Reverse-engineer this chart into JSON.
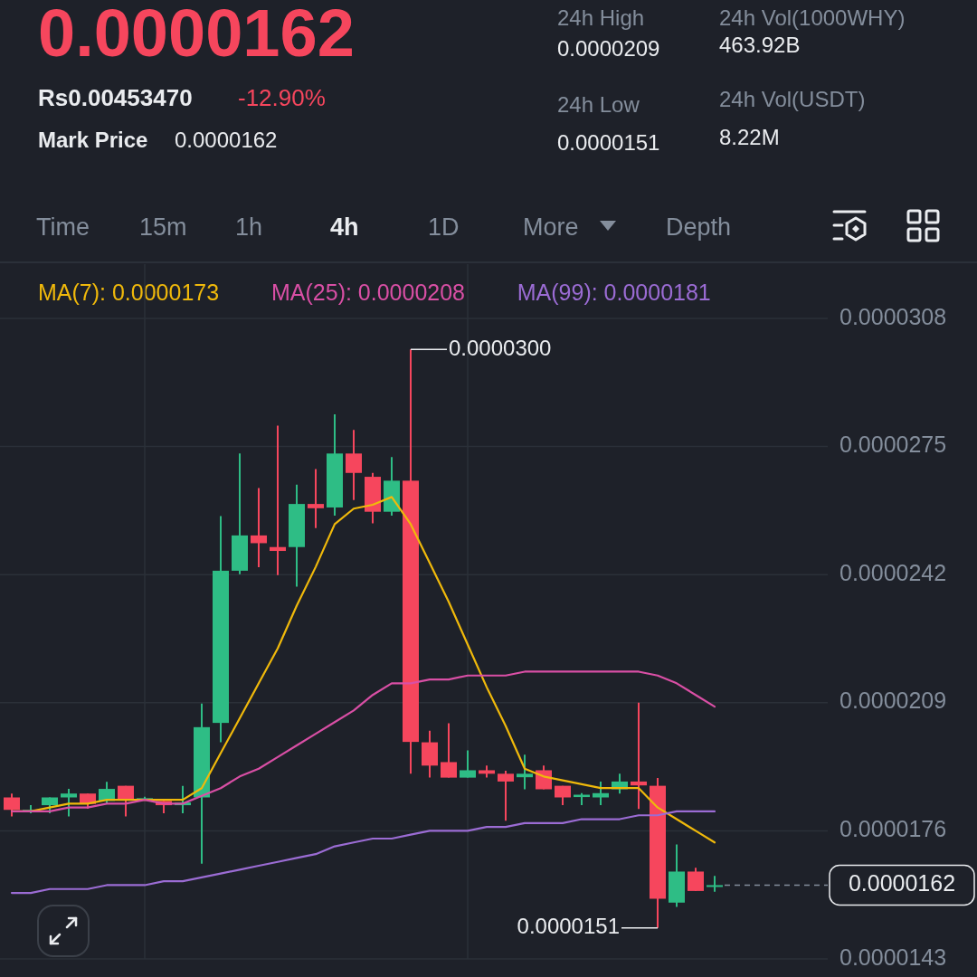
{
  "chart_data": {
    "type": "candlestick",
    "title": "0.0000162",
    "annotations": [
      "Rs0.00453470",
      "-12.90%",
      "Mark Price",
      "0.0000162",
      "24h High",
      "0.0000209",
      "24h Vol(1000WHY)",
      "463.92B",
      "24h Low",
      "0.0000151",
      "24h Vol(USDT)",
      "8.22M",
      "Time",
      "15m",
      "1h",
      "4h",
      "1D",
      "More",
      "Depth",
      "0.0000300",
      "0.0000151"
    ],
    "categories": [
      null,
      null,
      null,
      null,
      null,
      null,
      null,
      null,
      null,
      null,
      null,
      null,
      null,
      null,
      null,
      null,
      null,
      null,
      null,
      null,
      null,
      null,
      null,
      null,
      null,
      null,
      null,
      null,
      null,
      null,
      null,
      null,
      null,
      null,
      null,
      null,
      null,
      null
    ],
    "ohlc": [
      [
        1.846e-05,
        1.856e-05,
        1.797e-05,
        1.814e-05
      ],
      [
        1.808e-05,
        1.826e-05,
        1.805e-05,
        1.814e-05
      ],
      [
        1.826e-05,
        1.846e-05,
        1.805e-05,
        1.846e-05
      ],
      [
        1.846e-05,
        1.868e-05,
        1.797e-05,
        1.856e-05
      ],
      [
        1.856e-05,
        1.856e-05,
        1.817e-05,
        1.829e-05
      ],
      [
        1.837e-05,
        1.886e-05,
        1.83e-05,
        1.868e-05
      ],
      [
        1.876e-05,
        1.876e-05,
        1.797e-05,
        1.841e-05
      ],
      [
        1.842e-05,
        1.848e-05,
        1.838e-05,
        1.844e-05
      ],
      [
        1.837e-05,
        1.837e-05,
        1.805e-05,
        1.826e-05
      ],
      [
        1.826e-05,
        1.876e-05,
        1.805e-05,
        1.833e-05
      ],
      [
        1.846e-05,
        2.088e-05,
        1.675e-05,
        2.027e-05
      ],
      [
        2.038e-05,
        2.571e-05,
        1.988e-05,
        2.43e-05
      ],
      [
        2.43e-05,
        2.732e-05,
        2.421e-05,
        2.521e-05
      ],
      [
        2.521e-05,
        2.643e-05,
        2.439e-05,
        2.501e-05
      ],
      [
        2.491e-05,
        2.804e-05,
        2.419e-05,
        2.481e-05
      ],
      [
        2.491e-05,
        2.652e-05,
        2.389e-05,
        2.602e-05
      ],
      [
        2.602e-05,
        2.692e-05,
        2.54e-05,
        2.591e-05
      ],
      [
        2.593e-05,
        2.833e-05,
        2.572e-05,
        2.732e-05
      ],
      [
        2.732e-05,
        2.793e-05,
        2.612e-05,
        2.682e-05
      ],
      [
        2.672e-05,
        2.682e-05,
        2.552e-05,
        2.582e-05
      ],
      [
        2.582e-05,
        2.723e-05,
        2.572e-05,
        2.662e-05
      ],
      [
        2.662e-05,
        3e-05,
        1.907e-05,
        1.989e-05
      ],
      [
        1.988e-05,
        2.018e-05,
        1.897e-05,
        1.928e-05
      ],
      [
        1.937e-05,
        2.037e-05,
        1.897e-05,
        1.897e-05
      ],
      [
        1.897e-05,
        1.967e-05,
        1.897e-05,
        1.916e-05
      ],
      [
        1.916e-05,
        1.928e-05,
        1.897e-05,
        1.907e-05
      ],
      [
        1.907e-05,
        1.915e-05,
        1.786e-05,
        1.887e-05
      ],
      [
        1.898e-05,
        1.956e-05,
        1.867e-05,
        1.907e-05
      ],
      [
        1.916e-05,
        1.928e-05,
        1.867e-05,
        1.867e-05
      ],
      [
        1.876e-05,
        1.876e-05,
        1.826e-05,
        1.846e-05
      ],
      [
        1.847e-05,
        1.857e-05,
        1.826e-05,
        1.853e-05
      ],
      [
        1.846e-05,
        1.887e-05,
        1.826e-05,
        1.857e-05
      ],
      [
        1.867e-05,
        1.907e-05,
        1.856e-05,
        1.887e-05
      ],
      [
        1.887e-05,
        2.09e-05,
        1.816e-05,
        1.877e-05
      ],
      [
        1.876e-05,
        1.896e-05,
        1.51e-05,
        1.585e-05
      ],
      [
        1.575e-05,
        1.725e-05,
        1.564e-05,
        1.655e-05
      ],
      [
        1.655e-05,
        1.665e-05,
        1.605e-05,
        1.605e-05
      ],
      [
        1.617e-05,
        1.644e-05,
        1.603e-05,
        1.62e-05
      ]
    ],
    "colors": [
      "#f6465d",
      "#2ebd85",
      "#2ebd85",
      "#2ebd85",
      "#f6465d",
      "#2ebd85",
      "#f6465d",
      "#2ebd85",
      "#f6465d",
      "#2ebd85",
      "#2ebd85",
      "#2ebd85",
      "#2ebd85",
      "#f6465d",
      "#f6465d",
      "#2ebd85",
      "#f6465d",
      "#2ebd85",
      "#f6465d",
      "#f6465d",
      "#2ebd85",
      "#f6465d",
      "#f6465d",
      "#f6465d",
      "#2ebd85",
      "#f6465d",
      "#f6465d",
      "#2ebd85",
      "#f6465d",
      "#f6465d",
      "#2ebd85",
      "#2ebd85",
      "#2ebd85",
      "#f6465d",
      "#f6465d",
      "#2ebd85",
      "#f6465d",
      "#2ebd85"
    ],
    "series": [
      {
        "type": "line",
        "name": "MA(7): 0.0000173",
        "color": "#f0b90b",
        "values": [
          1.81e-05,
          1.81e-05,
          1.82e-05,
          1.83e-05,
          1.83e-05,
          1.84e-05,
          1.84e-05,
          1.84e-05,
          1.84e-05,
          1.84e-05,
          1.87e-05,
          1.96e-05,
          2.05e-05,
          2.14e-05,
          2.23e-05,
          2.34e-05,
          2.44e-05,
          2.55e-05,
          2.59e-05,
          2.6e-05,
          2.62e-05,
          2.55e-05,
          2.45e-05,
          2.35e-05,
          2.24e-05,
          2.13e-05,
          2.03e-05,
          1.92e-05,
          1.9e-05,
          1.89e-05,
          1.88e-05,
          1.87e-05,
          1.87e-05,
          1.87e-05,
          1.82e-05,
          1.79e-05,
          1.76e-05,
          1.73e-05
        ]
      },
      {
        "type": "line",
        "name": "MA(25): 0.0000208",
        "color": "#d94fa5",
        "values": [
          1.81e-05,
          1.81e-05,
          1.81e-05,
          1.82e-05,
          1.82e-05,
          1.83e-05,
          1.83e-05,
          1.84e-05,
          1.83e-05,
          1.83e-05,
          1.85e-05,
          1.87e-05,
          1.9e-05,
          1.92e-05,
          1.95e-05,
          1.98e-05,
          2.01e-05,
          2.04e-05,
          2.07e-05,
          2.11e-05,
          2.14e-05,
          2.14e-05,
          2.15e-05,
          2.15e-05,
          2.16e-05,
          2.16e-05,
          2.16e-05,
          2.17e-05,
          2.17e-05,
          2.17e-05,
          2.17e-05,
          2.17e-05,
          2.17e-05,
          2.17e-05,
          2.16e-05,
          2.14e-05,
          2.11e-05,
          2.08e-05
        ]
      },
      {
        "type": "line",
        "name": "MA(99): 0.0000181",
        "color": "#9b6cd4",
        "values": [
          1.6e-05,
          1.6e-05,
          1.61e-05,
          1.61e-05,
          1.61e-05,
          1.62e-05,
          1.62e-05,
          1.62e-05,
          1.63e-05,
          1.63e-05,
          1.64e-05,
          1.65e-05,
          1.66e-05,
          1.67e-05,
          1.68e-05,
          1.69e-05,
          1.7e-05,
          1.72e-05,
          1.73e-05,
          1.74e-05,
          1.74e-05,
          1.75e-05,
          1.76e-05,
          1.76e-05,
          1.76e-05,
          1.77e-05,
          1.77e-05,
          1.78e-05,
          1.78e-05,
          1.78e-05,
          1.79e-05,
          1.79e-05,
          1.79e-05,
          1.8e-05,
          1.8e-05,
          1.81e-05,
          1.81e-05,
          1.81e-05
        ]
      }
    ],
    "ylim": [
      1.43e-05,
      3.08e-05
    ],
    "yticks": [
      {
        "value": 1.43e-05,
        "label": "0.0000143"
      },
      {
        "value": 1.76e-05,
        "label": "0.0000176"
      },
      {
        "value": 2.09e-05,
        "label": "0.0000209"
      },
      {
        "value": 2.42e-05,
        "label": "0.0000242"
      },
      {
        "value": 2.75e-05,
        "label": "0.0000275"
      },
      {
        "value": 3.08e-05,
        "label": "0.0000308"
      }
    ],
    "grid": true,
    "legend": "top",
    "tick_labels": "y",
    "ref_lines": [
      {
        "axis": "y",
        "value": 1.62e-05,
        "label": "0.0000162",
        "line_style": "dashed",
        "color": "#848e9c"
      }
    ]
  }
}
